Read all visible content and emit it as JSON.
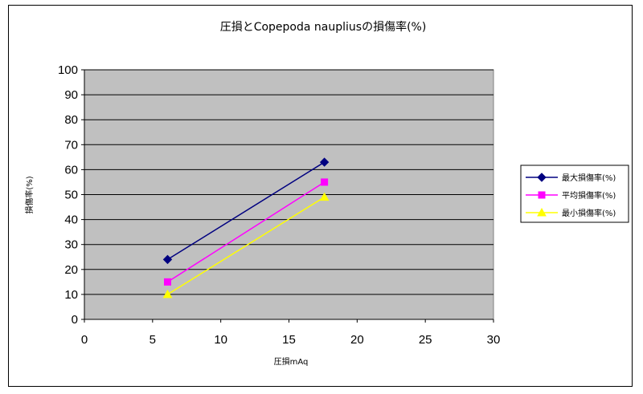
{
  "chart_data": {
    "type": "line",
    "title": "圧損とCopepoda naupliusの損傷率(%)",
    "xlabel": "圧損mAq",
    "ylabel": "損傷率(%)",
    "xlim": [
      0,
      30
    ],
    "ylim": [
      0,
      100
    ],
    "xticks": [
      0,
      5,
      10,
      15,
      20,
      25,
      30
    ],
    "yticks": [
      0,
      10,
      20,
      30,
      40,
      50,
      60,
      70,
      80,
      90,
      100
    ],
    "grid": "horizontal",
    "plot_background": "#c0c0c0",
    "legend_position": "right",
    "series": [
      {
        "name": "最大損傷率(%)",
        "color": "#000080",
        "marker": "diamond",
        "x": [
          6.1,
          17.6
        ],
        "y": [
          24,
          63
        ]
      },
      {
        "name": "平均損傷率(%)",
        "color": "#ff00ff",
        "marker": "square",
        "x": [
          6.1,
          17.6
        ],
        "y": [
          15,
          55
        ]
      },
      {
        "name": "最小損傷率(%)",
        "color": "#ffff00",
        "marker": "triangle",
        "x": [
          6.1,
          17.6
        ],
        "y": [
          10,
          49
        ]
      }
    ]
  }
}
